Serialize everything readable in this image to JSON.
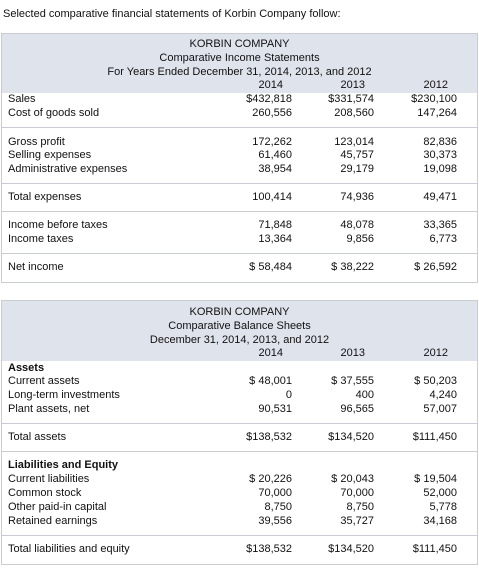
{
  "intro": "Selected comparative financial statements of Korbin Company follow:",
  "income_statement": {
    "title": [
      "KORBIN COMPANY",
      "Comparative Income Statements",
      "For Years Ended December 31, 2014, 2013, and 2012"
    ],
    "years": [
      "2014",
      "2013",
      "2012"
    ],
    "rows": [
      {
        "label": "Sales",
        "values": [
          "$432,818",
          "$331,574",
          "$230,100"
        ]
      },
      {
        "label": "Cost of goods sold",
        "values": [
          "260,556",
          "208,560",
          "147,264"
        ]
      },
      {
        "label": "Gross profit",
        "values": [
          "172,262",
          "123,014",
          "82,836"
        ]
      },
      {
        "label": "Selling expenses",
        "values": [
          "61,460",
          "45,757",
          "30,373"
        ]
      },
      {
        "label": "Administrative expenses",
        "values": [
          "38,954",
          "29,179",
          "19,098"
        ]
      },
      {
        "label": "Total expenses",
        "values": [
          "100,414",
          "74,936",
          "49,471"
        ]
      },
      {
        "label": "Income before taxes",
        "values": [
          "71,848",
          "48,078",
          "33,365"
        ]
      },
      {
        "label": "Income taxes",
        "values": [
          "13,364",
          "9,856",
          "6,773"
        ]
      },
      {
        "label": "Net income",
        "values": [
          "$ 58,484",
          "$ 38,222",
          "$ 26,592"
        ]
      }
    ]
  },
  "balance_sheet": {
    "title": [
      "KORBIN COMPANY",
      "Comparative Balance Sheets",
      "December 31, 2014, 2013, and 2012"
    ],
    "years": [
      "2014",
      "2013",
      "2012"
    ],
    "rows": [
      {
        "label": "Assets"
      },
      {
        "label": "Current assets",
        "values": [
          "$ 48,001",
          "$ 37,555",
          "$ 50,203"
        ]
      },
      {
        "label": "Long-term investments",
        "values": [
          "0",
          "400",
          "4,240"
        ]
      },
      {
        "label": "Plant assets, net",
        "values": [
          "90,531",
          "96,565",
          "57,007"
        ]
      },
      {
        "label": "Total assets",
        "values": [
          "$138,532",
          "$134,520",
          "$111,450"
        ]
      },
      {
        "label": "Liabilities and Equity"
      },
      {
        "label": "Current liabilities",
        "values": [
          "$ 20,226",
          "$ 20,043",
          "$ 19,504"
        ]
      },
      {
        "label": "Common stock",
        "values": [
          "70,000",
          "70,000",
          "52,000"
        ]
      },
      {
        "label": "Other paid-in capital",
        "values": [
          "8,750",
          "8,750",
          "5,778"
        ]
      },
      {
        "label": "Retained earnings",
        "values": [
          "39,556",
          "35,727",
          "34,168"
        ]
      },
      {
        "label": "Total liabilities and equity",
        "values": [
          "$138,532",
          "$134,520",
          "$111,450"
        ]
      }
    ]
  }
}
